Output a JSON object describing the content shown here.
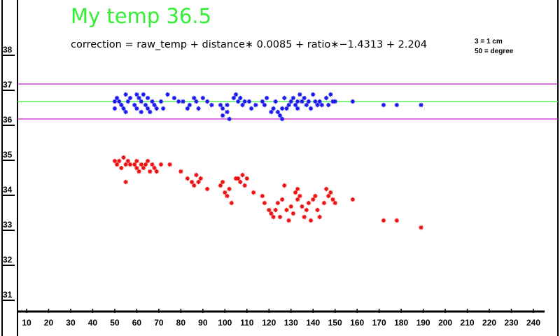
{
  "header": {
    "title": "My temp 36.5",
    "formula": "correction = raw_temp + distance∗ 0.0085 + ratio∗−1.4313 + 2.204",
    "note_distance": "3 = 1 cm",
    "note_angle": "50 = degree"
  },
  "colors": {
    "corrected": "#1a1aee",
    "raw": "#ee1111",
    "target_line": "#33ee33",
    "band_lines": "#cc22cc",
    "title": "#33ee33"
  },
  "chart_data": {
    "type": "scatter",
    "title": "My temp 36.5",
    "xlabel": "",
    "ylabel": "",
    "xlim": [
      0,
      250
    ],
    "ylim": [
      30.5,
      38.5
    ],
    "x_ticks": [
      "10",
      "20",
      "30",
      "40",
      "50",
      "60",
      "70",
      "80",
      "90",
      "100",
      "110",
      "120",
      "130",
      "140",
      "150",
      "160",
      "170",
      "180",
      "190",
      "200",
      "210",
      "220",
      "230",
      "240"
    ],
    "y_ticks": [
      "31",
      "32",
      "33",
      "34",
      "35",
      "36",
      "37",
      "38"
    ],
    "reference_lines": [
      {
        "y": 36.5,
        "color": "#33ee33"
      },
      {
        "y": 37.0,
        "color": "#cc22cc"
      },
      {
        "y": 36.0,
        "color": "#cc22cc"
      }
    ],
    "series": [
      {
        "color": "#1a1aee",
        "points": [
          [
            50,
            36.5
          ],
          [
            50,
            36.3
          ],
          [
            51,
            36.6
          ],
          [
            52,
            36.5
          ],
          [
            53,
            36.4
          ],
          [
            54,
            36.3
          ],
          [
            55,
            36.7
          ],
          [
            55,
            36.2
          ],
          [
            56,
            36.5
          ],
          [
            57,
            36.6
          ],
          [
            59,
            36.4
          ],
          [
            60,
            36.7
          ],
          [
            60,
            36.3
          ],
          [
            61,
            36.6
          ],
          [
            62,
            36.5
          ],
          [
            62,
            36.2
          ],
          [
            63,
            36.7
          ],
          [
            64,
            36.4
          ],
          [
            65,
            36.6
          ],
          [
            65,
            36.3
          ],
          [
            66,
            36.2
          ],
          [
            67,
            36.5
          ],
          [
            68,
            36.4
          ],
          [
            69,
            36.3
          ],
          [
            71,
            36.5
          ],
          [
            72,
            36.3
          ],
          [
            74,
            36.7
          ],
          [
            77,
            36.6
          ],
          [
            79,
            36.5
          ],
          [
            81,
            36.5
          ],
          [
            83,
            36.3
          ],
          [
            84,
            36.4
          ],
          [
            86,
            36.6
          ],
          [
            87,
            36.5
          ],
          [
            88,
            36.3
          ],
          [
            90,
            36.6
          ],
          [
            92,
            36.5
          ],
          [
            94,
            36.4
          ],
          [
            98,
            36.4
          ],
          [
            99,
            36.3
          ],
          [
            99,
            36.1
          ],
          [
            101,
            36.2
          ],
          [
            101,
            36.4
          ],
          [
            102,
            36.0
          ],
          [
            104,
            36.6
          ],
          [
            105,
            36.7
          ],
          [
            106,
            36.5
          ],
          [
            107,
            36.6
          ],
          [
            108,
            36.4
          ],
          [
            109,
            36.5
          ],
          [
            111,
            36.5
          ],
          [
            112,
            36.3
          ],
          [
            114,
            36.4
          ],
          [
            117,
            36.5
          ],
          [
            118,
            36.4
          ],
          [
            119,
            36.6
          ],
          [
            121,
            36.2
          ],
          [
            122,
            36.3
          ],
          [
            123,
            36.5
          ],
          [
            124,
            36.2
          ],
          [
            125,
            36.1
          ],
          [
            126,
            36.3
          ],
          [
            126,
            36.0
          ],
          [
            127,
            36.6
          ],
          [
            128,
            36.3
          ],
          [
            129,
            36.4
          ],
          [
            130,
            36.5
          ],
          [
            131,
            36.6
          ],
          [
            132,
            36.4
          ],
          [
            133,
            36.5
          ],
          [
            133,
            36.3
          ],
          [
            134,
            36.7
          ],
          [
            135,
            36.5
          ],
          [
            136,
            36.6
          ],
          [
            137,
            36.4
          ],
          [
            138,
            36.5
          ],
          [
            139,
            36.3
          ],
          [
            140,
            36.7
          ],
          [
            141,
            36.5
          ],
          [
            142,
            36.4
          ],
          [
            143,
            36.5
          ],
          [
            144,
            36.4
          ],
          [
            146,
            36.6
          ],
          [
            147,
            36.4
          ],
          [
            148,
            36.7
          ],
          [
            149,
            36.5
          ],
          [
            150,
            36.5
          ],
          [
            158,
            36.5
          ],
          [
            172,
            36.4
          ],
          [
            178,
            36.4
          ],
          [
            189,
            36.4
          ]
        ]
      },
      {
        "color": "#ee1111",
        "points": [
          [
            50,
            34.8
          ],
          [
            51,
            34.7
          ],
          [
            52,
            34.8
          ],
          [
            53,
            34.6
          ],
          [
            54,
            34.9
          ],
          [
            55,
            34.7
          ],
          [
            55,
            34.2
          ],
          [
            56,
            34.8
          ],
          [
            57,
            34.7
          ],
          [
            59,
            34.7
          ],
          [
            60,
            34.6
          ],
          [
            60,
            34.8
          ],
          [
            61,
            34.5
          ],
          [
            62,
            34.7
          ],
          [
            63,
            34.6
          ],
          [
            64,
            34.7
          ],
          [
            65,
            34.8
          ],
          [
            66,
            34.5
          ],
          [
            67,
            34.7
          ],
          [
            68,
            34.6
          ],
          [
            69,
            34.5
          ],
          [
            71,
            34.7
          ],
          [
            75,
            34.7
          ],
          [
            80,
            34.5
          ],
          [
            83,
            34.3
          ],
          [
            85,
            34.2
          ],
          [
            86,
            34.1
          ],
          [
            87,
            34.4
          ],
          [
            88,
            34.2
          ],
          [
            89,
            34.3
          ],
          [
            92,
            34.0
          ],
          [
            98,
            34.1
          ],
          [
            99,
            34.2
          ],
          [
            100,
            33.9
          ],
          [
            101,
            33.8
          ],
          [
            102,
            34.0
          ],
          [
            103,
            33.6
          ],
          [
            105,
            34.3
          ],
          [
            106,
            34.3
          ],
          [
            107,
            34.2
          ],
          [
            108,
            34.4
          ],
          [
            109,
            34.1
          ],
          [
            110,
            34.3
          ],
          [
            113,
            33.9
          ],
          [
            117,
            33.8
          ],
          [
            118,
            33.6
          ],
          [
            120,
            33.4
          ],
          [
            121,
            33.3
          ],
          [
            122,
            33.2
          ],
          [
            123,
            33.4
          ],
          [
            124,
            33.6
          ],
          [
            125,
            33.2
          ],
          [
            126,
            33.7
          ],
          [
            127,
            34.1
          ],
          [
            128,
            33.4
          ],
          [
            129,
            33.1
          ],
          [
            130,
            33.5
          ],
          [
            131,
            33.3
          ],
          [
            132,
            33.9
          ],
          [
            133,
            34.0
          ],
          [
            133,
            33.7
          ],
          [
            134,
            33.8
          ],
          [
            135,
            33.5
          ],
          [
            136,
            33.2
          ],
          [
            137,
            33.4
          ],
          [
            138,
            33.6
          ],
          [
            139,
            33.1
          ],
          [
            140,
            33.7
          ],
          [
            141,
            33.8
          ],
          [
            142,
            33.4
          ],
          [
            143,
            33.2
          ],
          [
            145,
            33.6
          ],
          [
            146,
            34.0
          ],
          [
            147,
            33.8
          ],
          [
            148,
            33.9
          ],
          [
            149,
            33.7
          ],
          [
            150,
            33.6
          ],
          [
            158,
            33.7
          ],
          [
            172,
            33.1
          ],
          [
            178,
            33.1
          ],
          [
            189,
            32.9
          ]
        ]
      }
    ],
    "grid": false,
    "legend": "none"
  }
}
